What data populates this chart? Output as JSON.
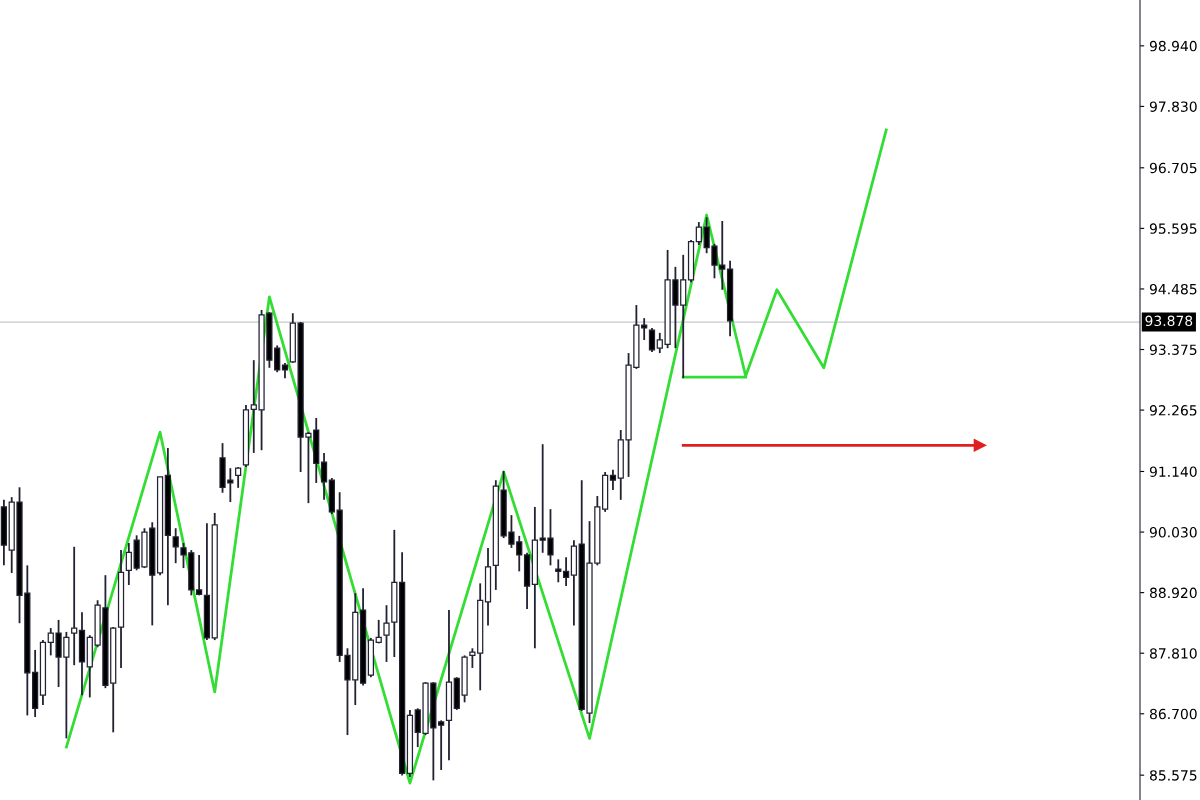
{
  "chart_data": {
    "type": "candlestick",
    "categories": [
      null,
      null,
      null,
      null,
      null,
      null,
      null,
      null,
      null,
      null,
      null,
      null,
      null,
      null,
      null,
      null,
      null,
      null,
      null,
      null,
      null,
      null,
      null,
      null,
      null,
      null,
      null,
      null,
      null,
      null,
      null,
      null,
      null,
      null,
      null,
      null,
      null,
      null,
      null,
      null,
      null,
      null,
      null,
      null,
      null,
      null,
      null,
      null,
      null,
      null,
      null,
      null,
      null,
      null,
      null,
      null,
      null,
      null,
      null,
      null,
      null,
      null,
      null,
      null,
      null,
      null,
      null,
      null,
      null,
      null,
      null,
      null,
      null,
      null,
      null,
      null,
      null,
      null,
      null,
      null,
      null,
      null,
      null,
      null,
      null,
      null,
      null,
      null,
      null,
      null,
      null,
      null,
      null,
      null,
      null,
      null,
      null,
      null,
      null,
      null,
      null,
      null,
      null,
      null,
      null,
      null,
      null,
      null,
      null,
      null,
      null,
      null,
      null,
      null,
      null,
      null,
      null,
      null,
      null,
      null,
      null,
      null,
      null,
      null,
      null,
      null,
      null,
      null,
      null,
      null,
      null,
      null,
      null,
      null,
      null,
      null,
      null,
      null,
      null,
      null,
      null,
      null,
      null,
      null,
      null,
      null
    ],
    "ohlc": [
      [
        90.49,
        90.62,
        89.42,
        89.79
      ],
      [
        89.7,
        90.67,
        89.28,
        90.58
      ],
      [
        90.58,
        90.85,
        88.36,
        88.87
      ],
      [
        88.91,
        89.42,
        86.67,
        87.45
      ],
      [
        87.46,
        87.87,
        86.64,
        86.8
      ],
      [
        87.04,
        88.05,
        86.86,
        88.01
      ],
      [
        88.01,
        88.27,
        87.77,
        88.18
      ],
      [
        88.18,
        88.42,
        87.19,
        87.74
      ],
      [
        87.74,
        88.2,
        86.25,
        88.1
      ],
      [
        88.18,
        89.76,
        87.59,
        88.27
      ],
      [
        88.23,
        88.56,
        87.04,
        87.65
      ],
      [
        87.56,
        88.14,
        87.0,
        88.1
      ],
      [
        87.96,
        88.78,
        87.92,
        88.69
      ],
      [
        88.64,
        89.24,
        87.17,
        87.22
      ],
      [
        87.26,
        88.29,
        86.36,
        88.27
      ],
      [
        88.29,
        89.7,
        87.54,
        89.29
      ],
      [
        89.33,
        89.83,
        89.06,
        89.66
      ],
      [
        89.88,
        89.97,
        89.33,
        89.37
      ],
      [
        89.39,
        90.1,
        89.37,
        90.03
      ],
      [
        90.1,
        90.21,
        88.32,
        89.24
      ],
      [
        89.28,
        91.04,
        89.24,
        91.04
      ],
      [
        91.07,
        91.57,
        88.69,
        89.97
      ],
      [
        89.94,
        90.1,
        89.46,
        89.76
      ],
      [
        89.74,
        89.83,
        89.37,
        89.61
      ],
      [
        89.65,
        89.7,
        88.87,
        88.97
      ],
      [
        88.97,
        89.61,
        88.87,
        88.89
      ],
      [
        88.87,
        90.19,
        88.05,
        88.09
      ],
      [
        88.09,
        90.38,
        88.05,
        90.16
      ],
      [
        91.39,
        91.66,
        90.75,
        90.85
      ],
      [
        90.98,
        91.2,
        90.58,
        90.93
      ],
      [
        91.07,
        91.22,
        90.84,
        91.2
      ],
      [
        91.26,
        92.36,
        91.22,
        92.27
      ],
      [
        92.28,
        93.18,
        91.48,
        92.36
      ],
      [
        92.27,
        94.1,
        91.53,
        94.01
      ],
      [
        94.04,
        94.06,
        93.04,
        93.18
      ],
      [
        93.4,
        93.45,
        92.96,
        93.0
      ],
      [
        93.09,
        93.13,
        92.85,
        93.0
      ],
      [
        93.15,
        94.04,
        93.13,
        93.86
      ],
      [
        93.86,
        93.88,
        91.13,
        91.77
      ],
      [
        91.77,
        91.86,
        90.56,
        91.84
      ],
      [
        91.9,
        92.12,
        90.93,
        91.29
      ],
      [
        91.31,
        91.48,
        90.62,
        90.95
      ],
      [
        90.98,
        91.02,
        90.36,
        90.4
      ],
      [
        90.43,
        90.76,
        87.65,
        87.77
      ],
      [
        87.77,
        87.9,
        86.31,
        87.32
      ],
      [
        87.32,
        88.91,
        86.86,
        88.56
      ],
      [
        88.6,
        89.0,
        87.22,
        87.26
      ],
      [
        87.41,
        88.09,
        87.37,
        88.05
      ],
      [
        88.01,
        88.42,
        87.99,
        88.1
      ],
      [
        88.14,
        88.69,
        87.65,
        88.36
      ],
      [
        88.38,
        90.07,
        87.74,
        89.11
      ],
      [
        89.11,
        89.66,
        85.57,
        85.61
      ],
      [
        85.61,
        86.77,
        85.54,
        86.67
      ],
      [
        86.77,
        86.8,
        86.09,
        86.36
      ],
      [
        86.34,
        87.28,
        86.31,
        87.26
      ],
      [
        87.26,
        87.28,
        85.48,
        86.44
      ],
      [
        86.55,
        86.58,
        85.67,
        86.49
      ],
      [
        86.58,
        88.6,
        85.85,
        87.28
      ],
      [
        87.35,
        87.37,
        86.77,
        86.8
      ],
      [
        87.04,
        87.77,
        86.91,
        87.74
      ],
      [
        87.77,
        87.9,
        87.54,
        87.83
      ],
      [
        87.81,
        89.09,
        87.13,
        88.78
      ],
      [
        88.75,
        89.74,
        88.32,
        89.39
      ],
      [
        89.42,
        90.98,
        88.97,
        90.87
      ],
      [
        90.8,
        91.15,
        89.92,
        89.96
      ],
      [
        90.03,
        90.34,
        89.74,
        89.81
      ],
      [
        89.85,
        89.96,
        89.31,
        89.61
      ],
      [
        89.61,
        89.65,
        88.62,
        89.04
      ],
      [
        89.07,
        90.49,
        87.9,
        89.88
      ],
      [
        89.92,
        91.64,
        89.65,
        89.88
      ],
      [
        89.92,
        90.45,
        89.42,
        89.61
      ],
      [
        89.35,
        89.53,
        89.11,
        89.31
      ],
      [
        89.31,
        89.57,
        89.04,
        89.2
      ],
      [
        89.24,
        89.88,
        88.32,
        89.77
      ],
      [
        89.81,
        90.98,
        86.75,
        86.78
      ],
      [
        86.71,
        90.23,
        86.53,
        89.46
      ],
      [
        89.46,
        90.69,
        89.42,
        90.49
      ],
      [
        90.45,
        91.13,
        90.4,
        91.07
      ],
      [
        91.07,
        91.17,
        90.8,
        90.98
      ],
      [
        91.02,
        91.9,
        90.62,
        91.72
      ],
      [
        91.72,
        93.31,
        91.04,
        93.09
      ],
      [
        93.05,
        94.19,
        93.02,
        93.82
      ],
      [
        93.82,
        93.95,
        93.55,
        93.77
      ],
      [
        93.73,
        93.77,
        93.33,
        93.37
      ],
      [
        93.4,
        93.68,
        93.31,
        93.55
      ],
      [
        93.47,
        95.2,
        93.4,
        94.65
      ],
      [
        94.65,
        94.89,
        93.4,
        94.19
      ],
      [
        94.19,
        95.11,
        92.85,
        94.65
      ],
      [
        94.65,
        95.38,
        94.61,
        95.35
      ],
      [
        95.35,
        95.71,
        95.29,
        95.62
      ],
      [
        95.62,
        95.8,
        95.14,
        95.24
      ],
      [
        95.27,
        95.31,
        94.68,
        94.92
      ],
      [
        94.92,
        95.73,
        94.47,
        94.85
      ],
      [
        94.85,
        95.0,
        93.62,
        93.9
      ],
      null,
      null,
      null,
      null,
      null,
      null,
      null,
      null,
      null,
      null,
      null,
      null,
      null,
      null,
      null,
      null,
      null,
      null,
      null,
      null,
      null,
      null,
      null,
      null,
      null,
      null,
      null,
      null,
      null,
      null,
      null,
      null,
      null,
      null,
      null,
      null,
      null,
      null,
      null,
      null,
      null,
      null,
      null,
      null,
      null,
      null,
      null,
      null,
      null,
      null,
      null,
      null
    ],
    "series": [
      {
        "type": "line",
        "color": "#33dd33",
        "values": [
          null,
          null,
          null,
          null,
          null,
          null,
          null,
          null,
          86.09,
          null,
          null,
          null,
          null,
          null,
          null,
          null,
          null,
          null,
          null,
          null,
          91.86,
          null,
          null,
          null,
          null,
          null,
          null,
          87.1,
          null,
          null,
          null,
          null,
          null,
          null,
          94.34,
          null,
          null,
          null,
          null,
          null,
          null,
          null,
          null,
          null,
          null,
          null,
          null,
          null,
          null,
          null,
          null,
          null,
          85.43,
          null,
          null,
          null,
          null,
          null,
          null,
          null,
          null,
          null,
          null,
          null,
          91.13,
          null,
          null,
          null,
          null,
          null,
          null,
          null,
          null,
          null,
          null,
          86.25,
          null,
          null,
          null,
          null,
          null,
          null,
          null,
          null,
          null,
          null,
          null,
          null,
          null,
          null,
          95.84,
          null,
          null,
          null,
          null,
          92.89,
          null,
          null,
          null,
          94.47,
          null,
          null,
          null,
          null,
          null,
          93.04,
          null,
          null,
          null,
          null,
          null,
          null,
          null,
          97.4,
          null,
          null,
          null,
          null,
          null,
          null,
          null,
          null,
          null,
          null,
          null,
          null,
          null,
          null,
          null,
          null,
          null,
          null,
          null,
          null,
          null,
          null,
          null,
          null,
          null,
          null,
          null,
          null,
          null,
          null,
          null,
          null
        ]
      },
      {
        "type": "line",
        "color": "#33dd33",
        "values": [
          null,
          null,
          null,
          null,
          null,
          null,
          null,
          null,
          null,
          null,
          null,
          null,
          null,
          null,
          null,
          null,
          null,
          null,
          null,
          null,
          null,
          null,
          null,
          null,
          null,
          null,
          null,
          null,
          null,
          null,
          null,
          null,
          null,
          null,
          null,
          null,
          null,
          null,
          null,
          null,
          null,
          null,
          null,
          null,
          null,
          null,
          null,
          null,
          null,
          null,
          null,
          null,
          null,
          null,
          null,
          null,
          null,
          null,
          null,
          null,
          null,
          null,
          null,
          null,
          null,
          null,
          null,
          null,
          null,
          null,
          null,
          null,
          null,
          null,
          null,
          null,
          null,
          null,
          null,
          null,
          null,
          null,
          null,
          null,
          null,
          null,
          null,
          92.87,
          null,
          null,
          null,
          null,
          null,
          null,
          null,
          92.87,
          null,
          null,
          null,
          null,
          null,
          null,
          null,
          null,
          null,
          null,
          null,
          null,
          null,
          null,
          null,
          null,
          null,
          null,
          null,
          null,
          null,
          null,
          null,
          null,
          null,
          null,
          null,
          null,
          null,
          null,
          null,
          null,
          null,
          null,
          null,
          null,
          null,
          null,
          null,
          null,
          null,
          null,
          null,
          null,
          null,
          null,
          null,
          null,
          null,
          null
        ]
      },
      {
        "type": "line",
        "color": "#e02020",
        "marker": "triangle",
        "values": [
          null,
          null,
          null,
          null,
          null,
          null,
          null,
          null,
          null,
          null,
          null,
          null,
          null,
          null,
          null,
          null,
          null,
          null,
          null,
          null,
          null,
          null,
          null,
          null,
          null,
          null,
          null,
          null,
          null,
          null,
          null,
          null,
          null,
          null,
          null,
          null,
          null,
          null,
          null,
          null,
          null,
          null,
          null,
          null,
          null,
          null,
          null,
          null,
          null,
          null,
          null,
          null,
          null,
          null,
          null,
          null,
          null,
          null,
          null,
          null,
          null,
          null,
          null,
          null,
          null,
          null,
          null,
          null,
          null,
          null,
          null,
          null,
          null,
          null,
          null,
          null,
          null,
          null,
          null,
          null,
          null,
          null,
          null,
          null,
          null,
          null,
          null,
          91.62,
          null,
          null,
          null,
          null,
          null,
          null,
          null,
          null,
          null,
          null,
          null,
          null,
          null,
          null,
          null,
          null,
          null,
          null,
          null,
          null,
          null,
          null,
          null,
          null,
          null,
          null,
          null,
          null,
          null,
          null,
          null,
          null,
          null,
          null,
          null,
          null,
          null,
          91.62,
          null,
          null,
          null,
          null,
          null,
          null,
          null,
          null,
          null,
          null,
          null,
          null,
          null,
          null,
          null,
          null,
          null,
          null,
          null,
          null
        ]
      }
    ],
    "ylim": [
      85.12,
      99.78
    ],
    "yticks": [
      {
        "value": 85.575,
        "label": "85.575"
      },
      {
        "value": 86.7,
        "label": "86.700"
      },
      {
        "value": 87.81,
        "label": "87.810"
      },
      {
        "value": 88.92,
        "label": "88.920"
      },
      {
        "value": 90.03,
        "label": "90.030"
      },
      {
        "value": 91.14,
        "label": "91.140"
      },
      {
        "value": 92.265,
        "label": "92.265"
      },
      {
        "value": 93.375,
        "label": "93.375"
      },
      {
        "value": 94.485,
        "label": "94.485"
      },
      {
        "value": 95.595,
        "label": "95.595"
      },
      {
        "value": 96.705,
        "label": "96.705"
      },
      {
        "value": 97.83,
        "label": "97.830"
      },
      {
        "value": 98.94,
        "label": "98.940"
      }
    ],
    "ref_lines": [
      {
        "axis": "y",
        "value": 93.878,
        "label": "93.878",
        "color": "#c8c8d0"
      }
    ],
    "tick_labels": "y",
    "grid": false
  }
}
